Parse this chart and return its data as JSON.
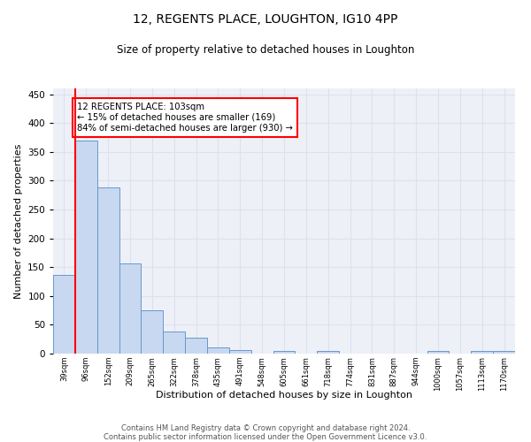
{
  "title": "12, REGENTS PLACE, LOUGHTON, IG10 4PP",
  "subtitle": "Size of property relative to detached houses in Loughton",
  "xlabel": "Distribution of detached houses by size in Loughton",
  "ylabel": "Number of detached properties",
  "bar_labels": [
    "39sqm",
    "96sqm",
    "152sqm",
    "209sqm",
    "265sqm",
    "322sqm",
    "378sqm",
    "435sqm",
    "491sqm",
    "548sqm",
    "605sqm",
    "661sqm",
    "718sqm",
    "774sqm",
    "831sqm",
    "887sqm",
    "944sqm",
    "1000sqm",
    "1057sqm",
    "1113sqm",
    "1170sqm"
  ],
  "bar_values": [
    136,
    370,
    288,
    156,
    75,
    38,
    27,
    10,
    6,
    0,
    5,
    0,
    5,
    0,
    0,
    0,
    0,
    4,
    0,
    4,
    4
  ],
  "bar_color": "#c8d8f0",
  "bar_edge_color": "#6699cc",
  "annotation_text": "12 REGENTS PLACE: 103sqm\n← 15% of detached houses are smaller (169)\n84% of semi-detached houses are larger (930) →",
  "annotation_box_color": "white",
  "annotation_box_edge_color": "red",
  "property_line_color": "red",
  "ylim": [
    0,
    460
  ],
  "yticks": [
    0,
    50,
    100,
    150,
    200,
    250,
    300,
    350,
    400,
    450
  ],
  "grid_color": "#dde0ee",
  "bg_color": "#eef0f8",
  "footer_line1": "Contains HM Land Registry data © Crown copyright and database right 2024.",
  "footer_line2": "Contains public sector information licensed under the Open Government Licence v3.0."
}
